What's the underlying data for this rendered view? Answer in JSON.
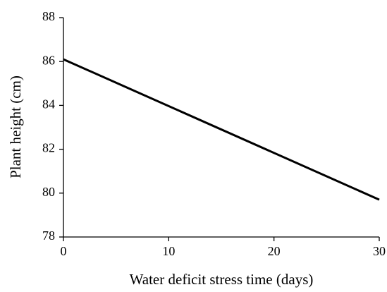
{
  "chart_data": {
    "type": "line",
    "xlabel": "Water deficit stress time (days)",
    "ylabel": "Plant height (cm)",
    "x": [
      0,
      30
    ],
    "series": [
      {
        "name": "Plant height",
        "color": "#000000",
        "values": [
          86.1,
          79.7
        ]
      }
    ],
    "xlim": [
      0,
      30
    ],
    "xticks": [
      0,
      10,
      20,
      30
    ],
    "ylim": [
      78,
      88
    ],
    "yticks": [
      78,
      80,
      82,
      84,
      86,
      88
    ],
    "grid": false
  }
}
